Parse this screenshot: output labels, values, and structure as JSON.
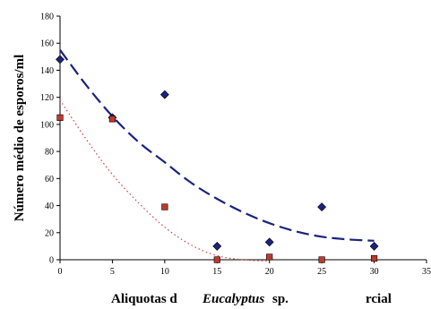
{
  "chart_data": {
    "type": "scatter",
    "title": "",
    "ylabel": "Número médio de esporos/ml",
    "xlabel_parts": [
      "Aliquotas d",
      "Eucalyptus",
      " sp.",
      "rcial"
    ],
    "xlim": [
      0,
      35
    ],
    "ylim": [
      0,
      180
    ],
    "x_ticks": [
      "0",
      "5",
      "10",
      "15",
      "20",
      "25",
      "30",
      "35"
    ],
    "y_ticks": [
      "0",
      "20",
      "40",
      "60",
      "80",
      "100",
      "120",
      "140",
      "160",
      "180"
    ],
    "grid": false,
    "legend": "none",
    "series": [
      {
        "marker": "diamond",
        "color": "#1a237e",
        "x": [
          0,
          5,
          10,
          15,
          20,
          25,
          30
        ],
        "y": [
          148,
          105,
          122,
          10,
          13,
          39,
          10
        ],
        "trend": {
          "style": "dashed",
          "color": "#1a237e",
          "x": [
            0,
            2.5,
            5,
            7.5,
            10,
            12.5,
            15,
            17.5,
            20,
            22.5,
            25,
            27.5,
            30
          ],
          "y": [
            155,
            129,
            106,
            87,
            72,
            57,
            45,
            35,
            27,
            21,
            17,
            15,
            14
          ]
        }
      },
      {
        "marker": "square",
        "color": "#c0392b",
        "x": [
          0,
          5,
          10,
          15,
          20,
          25,
          30
        ],
        "y": [
          105,
          104,
          39,
          0,
          2,
          0,
          1
        ],
        "trend": {
          "style": "dotted",
          "color": "#d04040",
          "x": [
            0,
            2.5,
            5,
            7.5,
            10,
            12.5,
            15,
            17.5,
            20
          ],
          "y": [
            118,
            89,
            63,
            42,
            24,
            11,
            3,
            0,
            -1
          ]
        }
      }
    ]
  }
}
